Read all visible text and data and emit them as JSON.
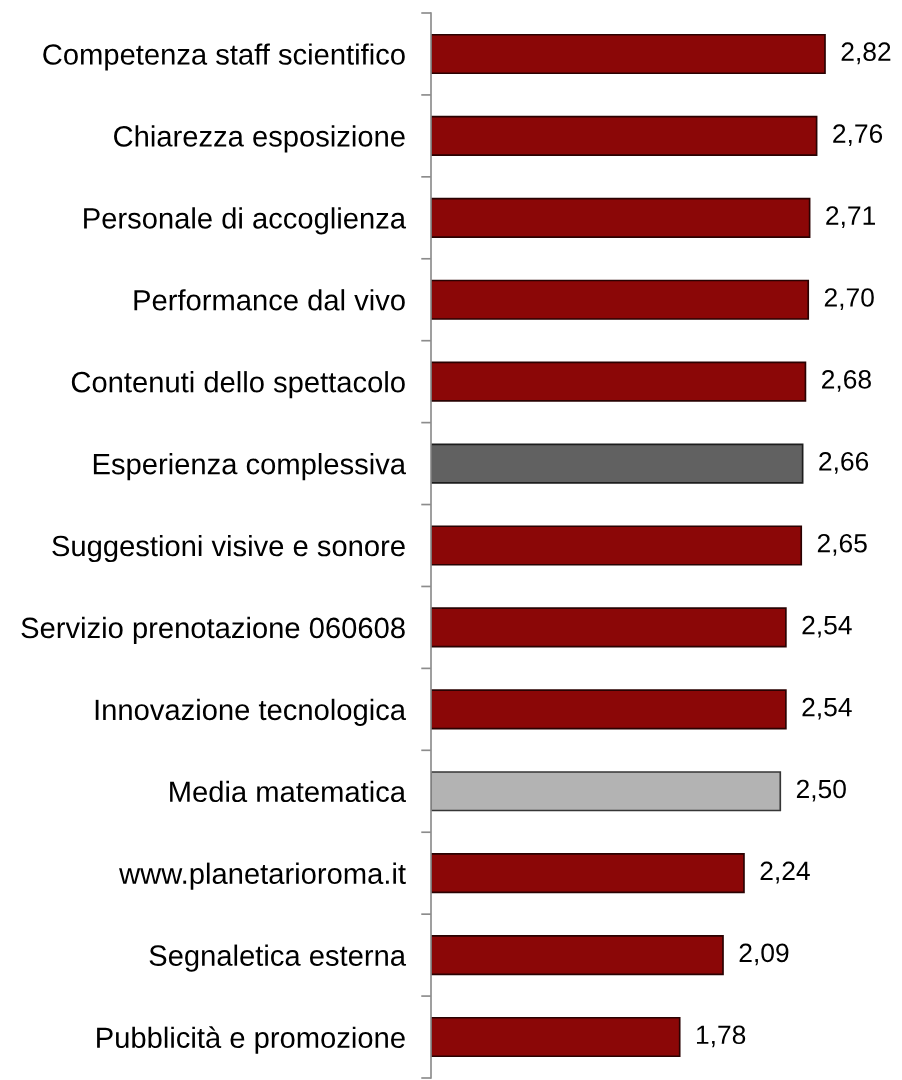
{
  "chart_data": {
    "type": "bar",
    "orientation": "horizontal",
    "categories": [
      "Competenza staff scientifico",
      "Chiarezza esposizione",
      "Personale di accoglienza",
      "Performance dal vivo",
      "Contenuti dello spettacolo",
      "Esperienza complessiva",
      "Suggestioni visive e sonore",
      "Servizio prenotazione 060608",
      "Innovazione tecnologica",
      "Media matematica",
      "www.planetarioroma.it",
      "Segnaletica esterna",
      "Pubblicità e promozione"
    ],
    "values": [
      2.82,
      2.76,
      2.71,
      2.7,
      2.68,
      2.66,
      2.65,
      2.54,
      2.54,
      2.5,
      2.24,
      2.09,
      1.78
    ],
    "colors": [
      "#8b0707",
      "#8b0707",
      "#8b0707",
      "#8b0707",
      "#8b0707",
      "#616161",
      "#8b0707",
      "#8b0707",
      "#8b0707",
      "#b3b3b3",
      "#8b0707",
      "#8b0707",
      "#8b0707"
    ],
    "value_labels": [
      "2,82",
      "2,76",
      "2,71",
      "2,70",
      "2,68",
      "2,66",
      "2,65",
      "2,54",
      "2,54",
      "2,50",
      "2,24",
      "2,09",
      "1,78"
    ],
    "tick_labels": "y"
  }
}
